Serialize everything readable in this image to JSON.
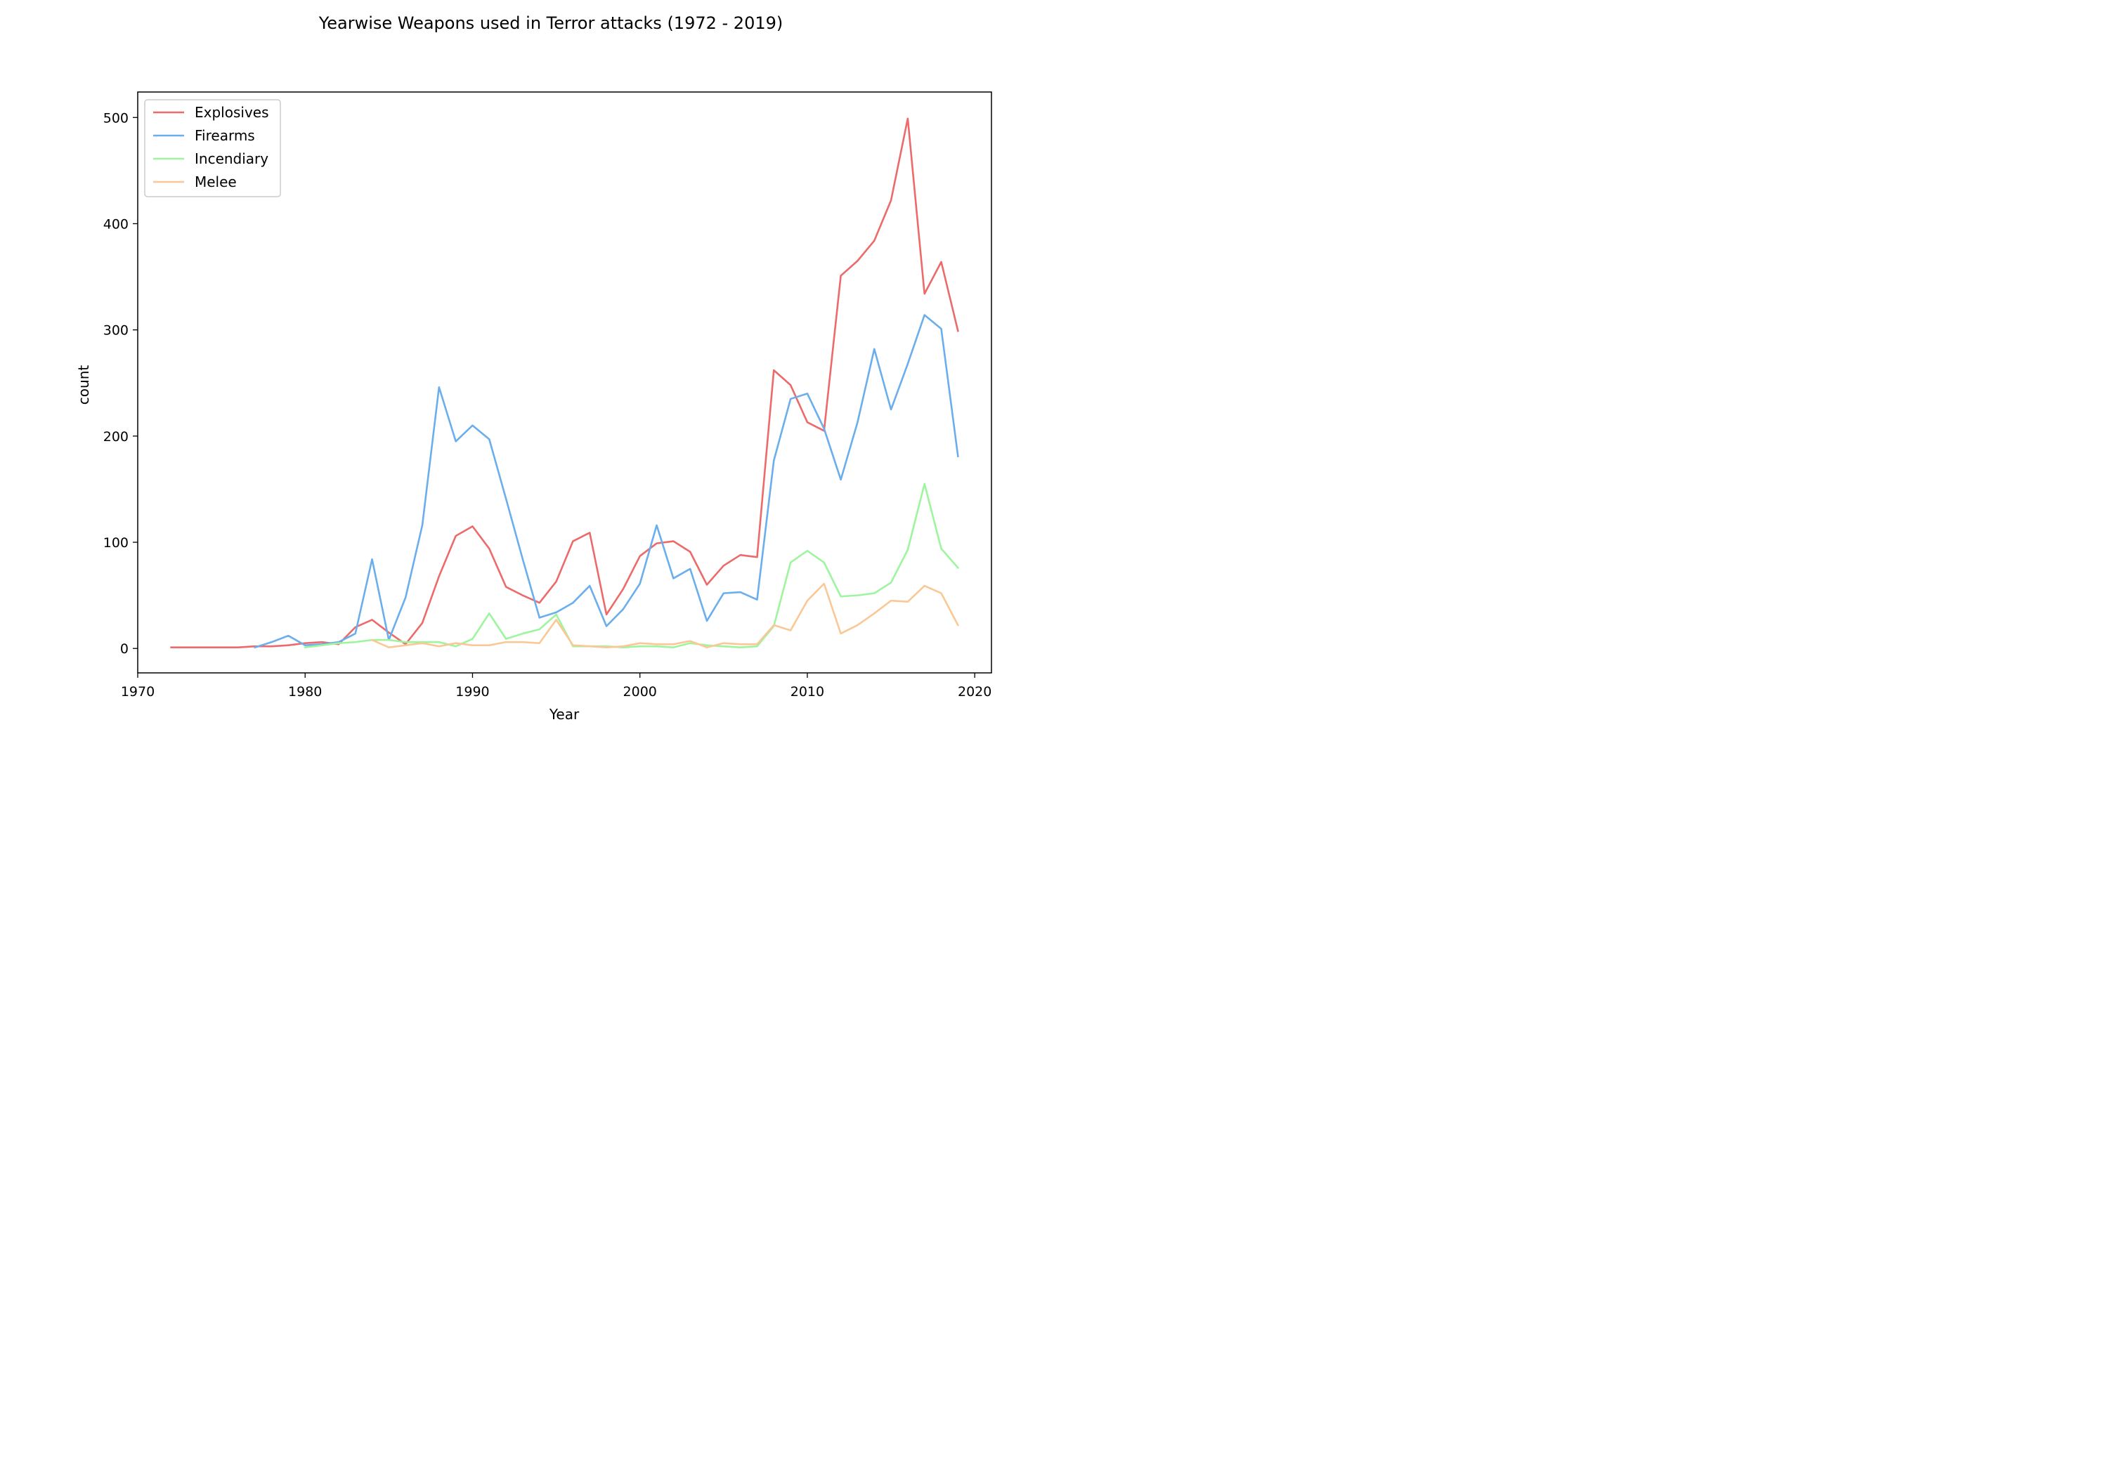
{
  "chart_data": {
    "type": "line",
    "title": "Yearwise Weapons used in Terror attacks (1972 - 2019)",
    "xlabel": "Year",
    "ylabel": "count",
    "xlim": [
      1970,
      2021
    ],
    "ylim": [
      -23,
      524
    ],
    "xticks": [
      1970,
      1980,
      1990,
      2000,
      2010,
      2020
    ],
    "yticks": [
      0,
      100,
      200,
      300,
      400,
      500
    ],
    "grid": false,
    "legend": "top-left",
    "series": [
      {
        "name": "Explosives",
        "color": "#ed6a6a",
        "x": [
          1972,
          1973,
          1974,
          1975,
          1976,
          1977,
          1978,
          1979,
          1980,
          1981,
          1982,
          1983,
          1984,
          1985,
          1986,
          1987,
          1988,
          1989,
          1990,
          1991,
          1992,
          1993,
          1994,
          1995,
          1996,
          1997,
          1998,
          1999,
          2000,
          2001,
          2002,
          2003,
          2004,
          2005,
          2006,
          2007,
          2008,
          2009,
          2010,
          2011,
          2012,
          2013,
          2014,
          2015,
          2016,
          2017,
          2018,
          2019
        ],
        "y": [
          1,
          1,
          1,
          1,
          1,
          2,
          2,
          3,
          5,
          6,
          4,
          20,
          27,
          15,
          4,
          24,
          68,
          106,
          115,
          94,
          58,
          50,
          43,
          63,
          101,
          109,
          32,
          56,
          87,
          99,
          101,
          91,
          60,
          78,
          88,
          86,
          262,
          248,
          213,
          205,
          351,
          365,
          384,
          422,
          499,
          334,
          364,
          299
        ]
      },
      {
        "name": "Firearms",
        "color": "#6aaeed",
        "x": [
          1977,
          1978,
          1979,
          1980,
          1981,
          1982,
          1983,
          1984,
          1985,
          1986,
          1987,
          1988,
          1989,
          1990,
          1991,
          1992,
          1993,
          1994,
          1995,
          1996,
          1997,
          1998,
          1999,
          2000,
          2001,
          2002,
          2003,
          2004,
          2005,
          2006,
          2007,
          2008,
          2009,
          2010,
          2011,
          2012,
          2013,
          2014,
          2015,
          2016,
          2017,
          2018,
          2019
        ],
        "y": [
          1,
          6,
          12,
          3,
          4,
          6,
          14,
          84,
          8,
          48,
          116,
          246,
          195,
          210,
          197,
          141,
          84,
          29,
          34,
          43,
          59,
          21,
          37,
          61,
          116,
          66,
          75,
          26,
          52,
          53,
          46,
          177,
          235,
          240,
          207,
          159,
          213,
          282,
          225,
          268,
          314,
          301,
          181
        ]
      },
      {
        "name": "Incendiary",
        "color": "#9ef59e",
        "x": [
          1980,
          1981,
          1982,
          1983,
          1984,
          1985,
          1986,
          1987,
          1988,
          1989,
          1990,
          1991,
          1992,
          1993,
          1994,
          1995,
          1996,
          1997,
          1998,
          1999,
          2000,
          2001,
          2002,
          2003,
          2004,
          2005,
          2006,
          2007,
          2008,
          2009,
          2010,
          2011,
          2012,
          2013,
          2014,
          2015,
          2016,
          2017,
          2018,
          2019
        ],
        "y": [
          1,
          3,
          5,
          6,
          8,
          8,
          6,
          6,
          6,
          2,
          9,
          33,
          9,
          14,
          18,
          32,
          2,
          2,
          2,
          1,
          2,
          2,
          1,
          5,
          3,
          2,
          1,
          2,
          21,
          81,
          92,
          81,
          49,
          50,
          52,
          62,
          93,
          155,
          94,
          76
        ]
      },
      {
        "name": "Melee",
        "color": "#fac896",
        "x": [
          1984,
          1985,
          1986,
          1987,
          1988,
          1989,
          1990,
          1991,
          1992,
          1993,
          1994,
          1995,
          1996,
          1997,
          1998,
          1999,
          2000,
          2001,
          2002,
          2003,
          2004,
          2005,
          2006,
          2007,
          2008,
          2009,
          2010,
          2011,
          2012,
          2013,
          2014,
          2015,
          2016,
          2017,
          2018,
          2019
        ],
        "y": [
          8,
          1,
          3,
          5,
          2,
          5,
          3,
          3,
          6,
          6,
          5,
          27,
          3,
          2,
          1,
          2,
          5,
          4,
          4,
          7,
          1,
          5,
          4,
          4,
          22,
          17,
          45,
          61,
          14,
          22,
          33,
          45,
          44,
          59,
          52,
          22
        ]
      }
    ]
  }
}
